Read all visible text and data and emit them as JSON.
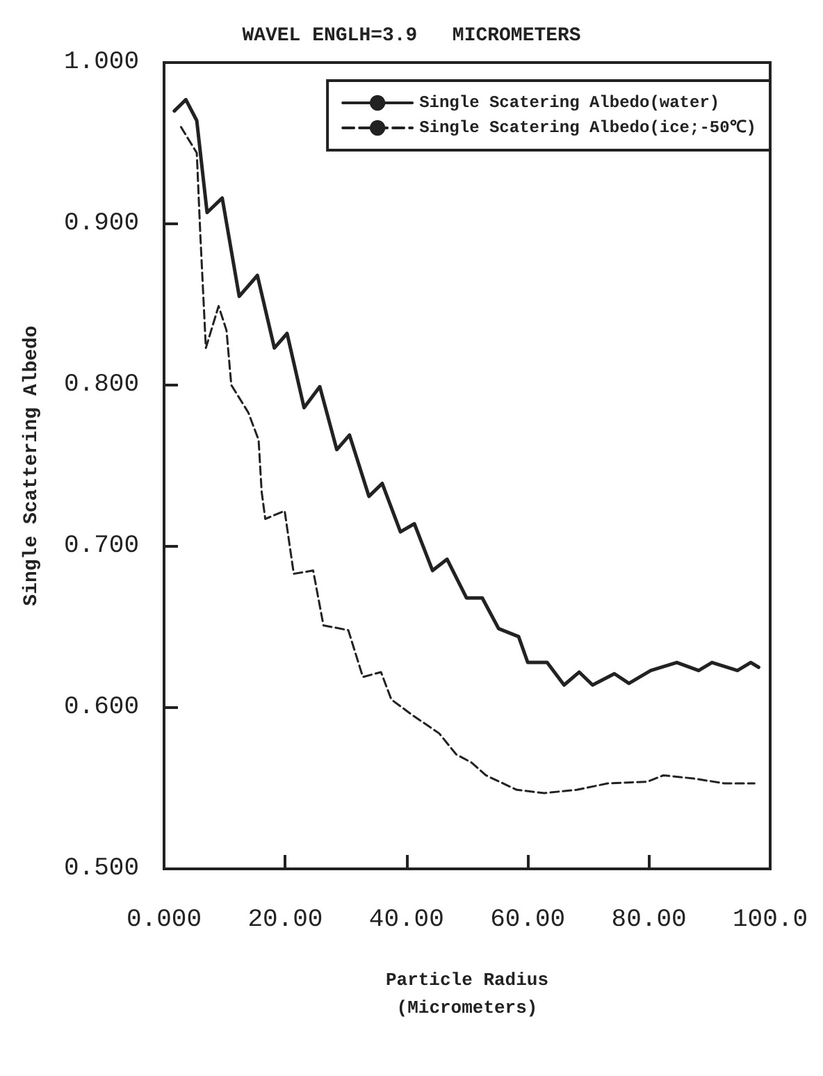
{
  "chart_data": {
    "type": "line",
    "title": "WAVEL ENGLH=3.9   MICROMETERS",
    "xlabel": "Particle Radius\n(Micrometers)",
    "ylabel": "Single Scattering Albedo",
    "xlim": [
      0,
      100
    ],
    "xticks": [
      {
        "value": 0,
        "label": "0.000"
      },
      {
        "value": 20,
        "label": "20.00"
      },
      {
        "value": 40,
        "label": "40.00"
      },
      {
        "value": 60,
        "label": "60.00"
      },
      {
        "value": 80,
        "label": "80.00"
      },
      {
        "value": 100,
        "label": "100.0"
      }
    ],
    "ylim": [
      0.5,
      1.0
    ],
    "yticks": [
      {
        "value": 0.5,
        "label": "0.500"
      },
      {
        "value": 0.6,
        "label": "0.600"
      },
      {
        "value": 0.7,
        "label": "0.700"
      },
      {
        "value": 0.8,
        "label": "0.800"
      },
      {
        "value": 0.9,
        "label": "0.900"
      },
      {
        "value": 1.0,
        "label": "1.000"
      }
    ],
    "grid": false,
    "legend": "top right",
    "marker": "none",
    "series": [
      {
        "name": "Single Scatering Albedo(water)",
        "color": "#222222",
        "line_style": "solid",
        "x": [
          1.7,
          3.6,
          5.4,
          7.1,
          9.6,
          12.4,
          15.4,
          18.2,
          20.3,
          23.1,
          25.7,
          28.5,
          30.6,
          33.8,
          36.0,
          39.0,
          41.3,
          44.3,
          46.7,
          49.9,
          52.5,
          55.2,
          58.5,
          60.0,
          63.2,
          66.0,
          68.5,
          70.7,
          74.3,
          76.7,
          80.3,
          84.6,
          88.2,
          90.4,
          94.6,
          96.8,
          98.1
        ],
        "values": [
          0.97,
          0.977,
          0.964,
          0.907,
          0.916,
          0.855,
          0.868,
          0.823,
          0.832,
          0.786,
          0.799,
          0.76,
          0.769,
          0.731,
          0.739,
          0.709,
          0.714,
          0.685,
          0.692,
          0.668,
          0.668,
          0.649,
          0.644,
          0.628,
          0.628,
          0.614,
          0.622,
          0.614,
          0.621,
          0.615,
          0.623,
          0.628,
          0.623,
          0.628,
          0.623,
          0.628,
          0.625
        ]
      },
      {
        "name": "Single Scatering Albedo(ice;-50℃)",
        "color": "#222222",
        "line_style": "dashed",
        "x": [
          2.8,
          5.4,
          6.0,
          6.9,
          9.0,
          10.3,
          11.1,
          13.9,
          15.6,
          16.1,
          16.7,
          19.9,
          21.4,
          24.6,
          26.3,
          30.4,
          32.8,
          35.8,
          37.5,
          41.1,
          45.4,
          48.2,
          50.7,
          53.1,
          58.2,
          62.7,
          68.1,
          73.2,
          79.7,
          82.4,
          87.4,
          92.5,
          97.4
        ],
        "values": [
          0.96,
          0.944,
          0.892,
          0.823,
          0.849,
          0.834,
          0.8,
          0.783,
          0.766,
          0.734,
          0.717,
          0.722,
          0.683,
          0.685,
          0.651,
          0.648,
          0.619,
          0.622,
          0.605,
          0.595,
          0.584,
          0.571,
          0.566,
          0.558,
          0.549,
          0.547,
          0.549,
          0.553,
          0.554,
          0.558,
          0.556,
          0.553,
          0.553
        ]
      }
    ]
  }
}
